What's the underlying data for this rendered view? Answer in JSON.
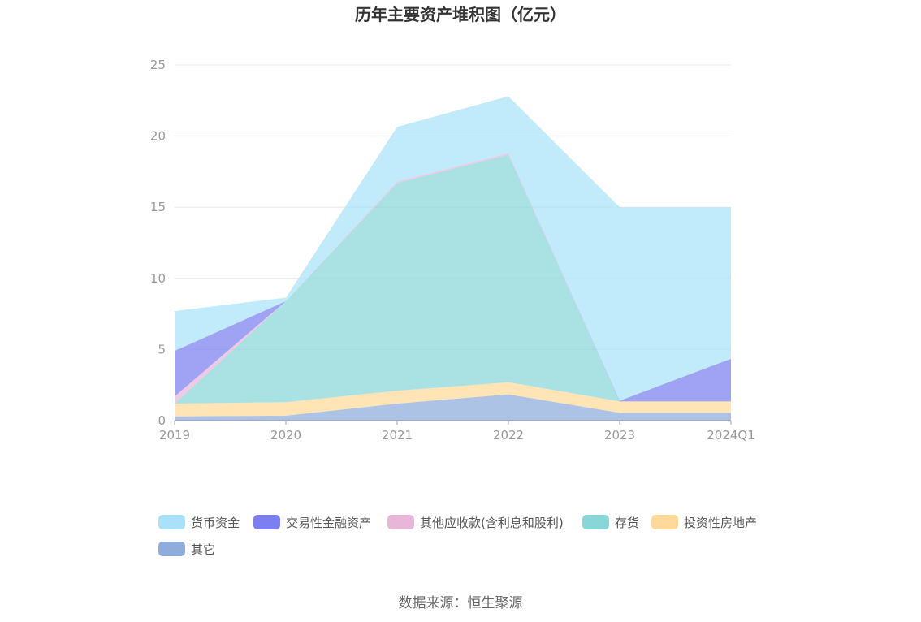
{
  "chart_data": {
    "type": "area",
    "stacked": true,
    "title": "历年主要资产堆积图（亿元）",
    "categories": [
      "2019",
      "2020",
      "2021",
      "2022",
      "2023",
      "2024Q1"
    ],
    "ylim": [
      0,
      25
    ],
    "yticks": [
      "0",
      "5",
      "10",
      "15",
      "20",
      "25"
    ],
    "grid": true,
    "legend_position": "bottom",
    "series": [
      {
        "name": "其它",
        "color": "#8eacdc",
        "values": [
          0.3,
          0.35,
          1.2,
          1.85,
          0.55,
          0.55
        ]
      },
      {
        "name": "投资性房地产",
        "color": "#ffd99a",
        "values": [
          0.9,
          0.95,
          0.9,
          0.85,
          0.8,
          0.8
        ]
      },
      {
        "name": "存货",
        "color": "#89d6d8",
        "values": [
          0.0,
          7.1,
          14.6,
          16.0,
          0.0,
          0.0
        ]
      },
      {
        "name": "其他应收款(含利息和股利)",
        "color": "#e8b6d8",
        "values": [
          0.5,
          0.0,
          0.1,
          0.1,
          0.0,
          0.0
        ]
      },
      {
        "name": "交易性金融资产",
        "color": "#7b7ff0",
        "values": [
          3.2,
          0.0,
          0.0,
          0.0,
          0.05,
          3.0
        ]
      },
      {
        "name": "货币资金",
        "color": "#a9e2f8",
        "values": [
          2.8,
          0.25,
          3.85,
          4.0,
          13.6,
          10.65
        ]
      }
    ],
    "legend_order": [
      "货币资金",
      "交易性金融资产",
      "其他应收款(含利息和股利)",
      "存货",
      "投资性房地产",
      "其它"
    ]
  },
  "source": "数据来源：恒生聚源"
}
